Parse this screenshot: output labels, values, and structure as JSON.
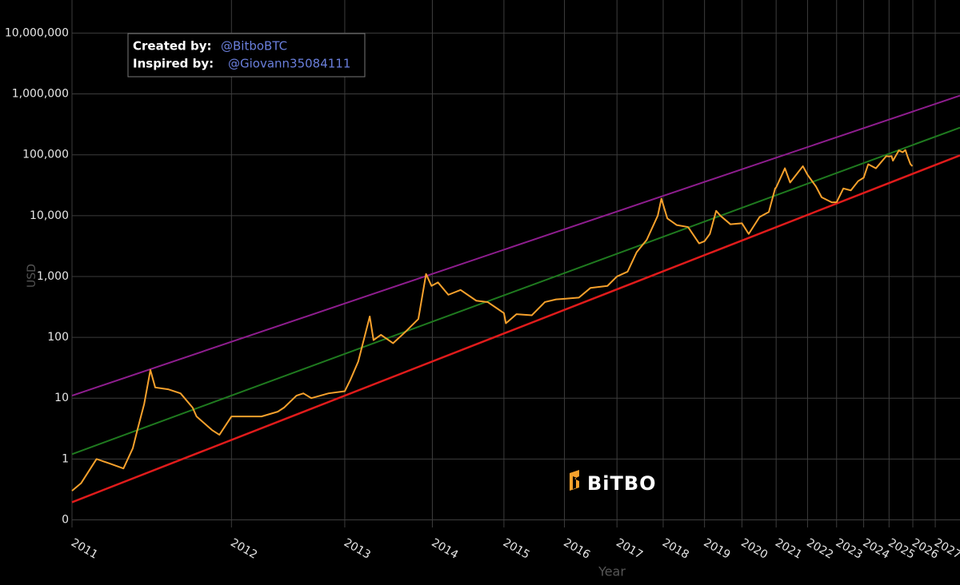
{
  "chart_data": {
    "type": "line",
    "xlabel": "Year",
    "ylabel": "USD",
    "annotation": {
      "created_label": "Created by:",
      "created_value": "@BitboBTC",
      "inspired_label": "Inspired by:",
      "inspired_value": "@Giovann35084111"
    },
    "watermark": "BiTBO",
    "xscale": "log",
    "yscale": "log",
    "grid": true,
    "xlim": [
      728,
      7000
    ],
    "ylim": [
      0.075,
      35000000
    ],
    "xticks": [
      {
        "value": 728,
        "label": "2011"
      },
      {
        "value": 1093,
        "label": "2012"
      },
      {
        "value": 1459,
        "label": "2013"
      },
      {
        "value": 1824,
        "label": "2014"
      },
      {
        "value": 2189,
        "label": "2015"
      },
      {
        "value": 2554,
        "label": "2016"
      },
      {
        "value": 2920,
        "label": "2017"
      },
      {
        "value": 3285,
        "label": "2018"
      },
      {
        "value": 3650,
        "label": "2019"
      },
      {
        "value": 4015,
        "label": "2020"
      },
      {
        "value": 4381,
        "label": "2021"
      },
      {
        "value": 4746,
        "label": "2022"
      },
      {
        "value": 5111,
        "label": "2023"
      },
      {
        "value": 5476,
        "label": "2024"
      },
      {
        "value": 5842,
        "label": "2025"
      },
      {
        "value": 6207,
        "label": "2026"
      },
      {
        "value": 6572,
        "label": "2027"
      }
    ],
    "yticks": [
      {
        "value": 0.1,
        "label": "0"
      },
      1,
      10,
      100,
      {
        "value": 1000,
        "label": "1,000"
      },
      {
        "value": 10000,
        "label": "10,000"
      },
      {
        "value": 100000,
        "label": "100,000"
      },
      {
        "value": 1000000,
        "label": "1,000,000"
      },
      {
        "value": 10000000,
        "label": "10,000,000"
      }
    ],
    "series": [
      {
        "color": "#8e1d8e",
        "width": 2,
        "x": [
          728,
          7000
        ],
        "values": [
          11,
          940000
        ]
      },
      {
        "color": "#1f7a1f",
        "width": 2,
        "x": [
          728,
          7000
        ],
        "values": [
          1.2,
          280000
        ]
      },
      {
        "color": "#e01b1b",
        "width": 2.5,
        "x": [
          728,
          7000
        ],
        "values": [
          0.195,
          98000
        ]
      },
      {
        "color": "#f7a12c",
        "width": 2,
        "x": [
          728,
          745,
          775,
          800,
          830,
          850,
          860,
          875,
          889,
          900,
          930,
          960,
          990,
          1000,
          1040,
          1060,
          1093,
          1120,
          1180,
          1230,
          1250,
          1290,
          1313,
          1340,
          1400,
          1459,
          1480,
          1510,
          1555,
          1570,
          1600,
          1650,
          1700,
          1760,
          1795,
          1820,
          1850,
          1900,
          1960,
          2040,
          2100,
          2150,
          2189,
          2200,
          2260,
          2350,
          2430,
          2500,
          2554,
          2650,
          2730,
          2850,
          2920,
          3000,
          3070,
          3150,
          3240,
          3270,
          3320,
          3400,
          3500,
          3600,
          3650,
          3700,
          3760,
          3800,
          3900,
          4015,
          4085,
          4200,
          4300,
          4370,
          4381,
          4480,
          4540,
          4600,
          4690,
          4746,
          4850,
          4920,
          5050,
          5111,
          5200,
          5300,
          5400,
          5476,
          5540,
          5650,
          5800,
          5842,
          5880,
          5900,
          5990,
          6050,
          6090,
          6130,
          6170,
          6200
        ],
        "values": [
          0.3,
          0.4,
          1.0,
          0.85,
          0.7,
          1.5,
          3,
          8,
          29,
          15,
          14,
          12,
          7,
          5,
          3,
          2.5,
          5,
          5,
          5,
          6,
          7,
          11,
          12,
          10,
          12,
          13,
          20,
          40,
          220,
          90,
          110,
          80,
          120,
          200,
          1100,
          700,
          800,
          500,
          600,
          400,
          380,
          300,
          250,
          170,
          240,
          230,
          380,
          420,
          430,
          450,
          650,
          700,
          1000,
          1200,
          2500,
          4000,
          10000,
          19000,
          9000,
          7000,
          6500,
          3500,
          3800,
          5000,
          12000,
          10000,
          7200,
          7500,
          5000,
          9500,
          11500,
          28000,
          29000,
          60000,
          35000,
          45000,
          65000,
          47000,
          30000,
          20000,
          16500,
          16600,
          28000,
          26000,
          37000,
          42000,
          70000,
          60000,
          95000,
          94000,
          95000,
          80000,
          118000,
          110000,
          120000,
          90000,
          70000,
          65000
        ]
      }
    ]
  }
}
